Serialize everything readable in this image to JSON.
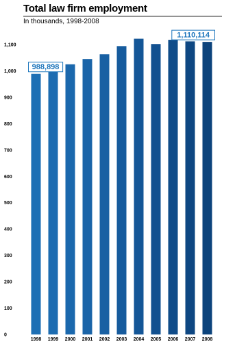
{
  "title": "Total law firm employment",
  "subtitle": "In thousands, 1998-2008",
  "chart_data": {
    "type": "bar",
    "title": "Total law firm employment",
    "subtitle": "In thousands, 1998-2008",
    "categories": [
      "1998",
      "1999",
      "2000",
      "2001",
      "2002",
      "2003",
      "2004",
      "2005",
      "2006",
      "2007",
      "2008"
    ],
    "values": [
      988.898,
      1020,
      1025,
      1045,
      1063,
      1094,
      1122,
      1102,
      1118,
      1112,
      1110.114
    ],
    "ylim": [
      0,
      1100
    ],
    "yticks": [
      0,
      100,
      200,
      300,
      400,
      500,
      600,
      700,
      800,
      900,
      1000,
      1100
    ],
    "ytick_labels": [
      "0",
      "100",
      "200",
      "300",
      "400",
      "500",
      "600",
      "700",
      "800",
      "900",
      "1,000",
      "1,100"
    ],
    "xlabel": "",
    "ylabel": "",
    "grid": false,
    "bar_colors": [
      "#1d6fb4",
      "#1c6cb1",
      "#1b68ad",
      "#1a64a8",
      "#1860a3",
      "#165b9d",
      "#145697",
      "#125190",
      "#104c89",
      "#0e4782",
      "#0c437c"
    ],
    "annotations": [
      {
        "label": "988,898",
        "category": "1998",
        "value": 988.898,
        "placement": "left"
      },
      {
        "label": "1,110,114",
        "category": "2008",
        "value": 1110.114,
        "placement": "right"
      }
    ],
    "callout_color": "#1c75bc"
  }
}
